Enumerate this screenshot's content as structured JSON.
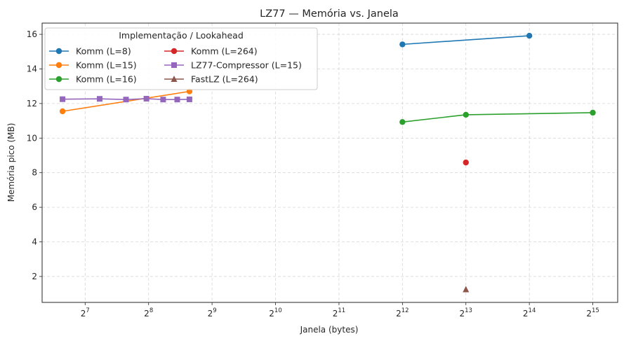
{
  "chart_data": {
    "type": "line",
    "title": "LZ77 — Memória vs. Janela",
    "xlabel": "Janela (bytes)",
    "ylabel": "Memória pico (MB)",
    "x_scale": "log2",
    "xlim": [
      80,
      43000
    ],
    "ylim": [
      0.5,
      16.65
    ],
    "grid": true,
    "legend_title": "Implementação / Lookahead",
    "legend_position": "top-left",
    "legend_columns": 2,
    "x_ticks": [
      {
        "base": "2",
        "exp": "7",
        "value": 128
      },
      {
        "base": "2",
        "exp": "8",
        "value": 256
      },
      {
        "base": "2",
        "exp": "9",
        "value": 512
      },
      {
        "base": "2",
        "exp": "10",
        "value": 1024
      },
      {
        "base": "2",
        "exp": "11",
        "value": 2048
      },
      {
        "base": "2",
        "exp": "12",
        "value": 4096
      },
      {
        "base": "2",
        "exp": "13",
        "value": 8192
      },
      {
        "base": "2",
        "exp": "14",
        "value": 16384
      },
      {
        "base": "2",
        "exp": "15",
        "value": 32768
      }
    ],
    "y_ticks": [
      "2",
      "4",
      "6",
      "8",
      "10",
      "12",
      "14",
      "16"
    ],
    "series": [
      {
        "name": "Komm (L=8)",
        "color": "#1f77b4",
        "marker": "circle",
        "x": [
          4096,
          16384
        ],
        "y": [
          15.42,
          15.92
        ]
      },
      {
        "name": "Komm (L=15)",
        "color": "#ff7f0e",
        "marker": "circle",
        "x": [
          100,
          400
        ],
        "y": [
          11.55,
          12.7
        ]
      },
      {
        "name": "Komm (L=16)",
        "color": "#2ca02c",
        "marker": "circle",
        "x": [
          4096,
          8192,
          32768
        ],
        "y": [
          10.93,
          11.35,
          11.47
        ]
      },
      {
        "name": "Komm (L=264)",
        "color": "#d62728",
        "marker": "circle",
        "x": [
          8192
        ],
        "y": [
          8.59
        ]
      },
      {
        "name": "LZ77-Compressor (L=15)",
        "color": "#9467bd",
        "marker": "square",
        "x": [
          100,
          150,
          200,
          250,
          300,
          350,
          400
        ],
        "y": [
          12.25,
          12.27,
          12.23,
          12.28,
          12.23,
          12.23,
          12.24
        ]
      },
      {
        "name": "FastLZ (L=264)",
        "color": "#8c564b",
        "marker": "triangle",
        "x": [
          8192
        ],
        "y": [
          1.25
        ]
      }
    ]
  }
}
